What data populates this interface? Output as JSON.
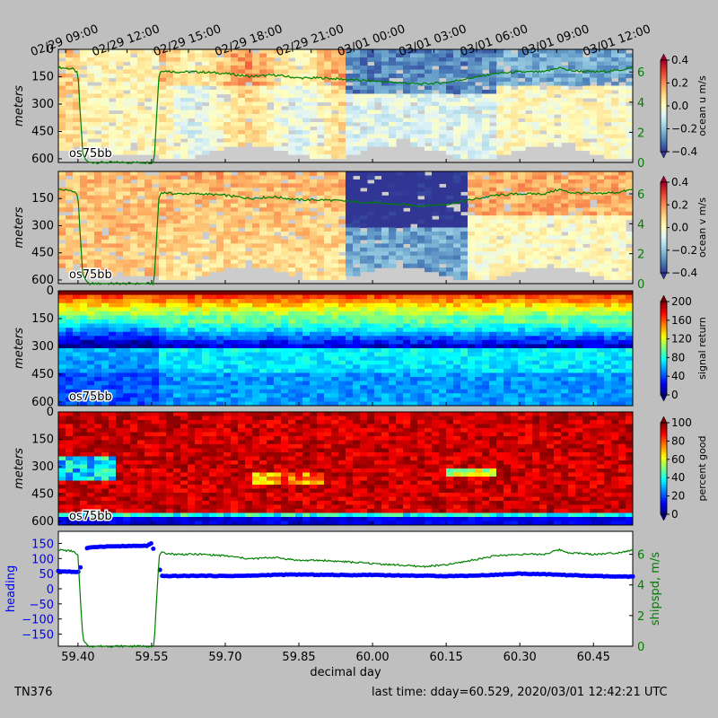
{
  "chart_data": [
    {
      "type": "heatmap",
      "panel": "ocean-u",
      "title": "",
      "ylabel": "meters",
      "ylim": [
        0,
        620
      ],
      "yticks": [
        "0",
        "150",
        "300",
        "450",
        "600"
      ],
      "label": "os75bb",
      "colorbar": {
        "label": "ocean u m/s",
        "range": [
          -0.4,
          0.4
        ],
        "ticks": [
          "0.4",
          "0.2",
          "0.0",
          "−0.2",
          "−0.4"
        ],
        "cmap": "RdYlBu_r"
      },
      "right_axis": {
        "ticks": [
          "6",
          "4",
          "2",
          "0"
        ],
        "color": "#007f00"
      },
      "top_axis_labels": [
        "02/29 09:00",
        "02/29 12:00",
        "02/29 15:00",
        "02/29 18:00",
        "02/29 21:00",
        "03/01 00:00",
        "03/01 03:00",
        "03/01 06:00",
        "03/01 09:00",
        "03/01 12:00"
      ],
      "approx_values": [
        {
          "dday": 59.4,
          "depth_150": 0.1,
          "depth_450": 0.05
        },
        {
          "dday": 59.75,
          "depth_150": 0.15,
          "depth_450": 0.0
        },
        {
          "dday": 60.15,
          "depth_150": -0.35,
          "depth_450": -0.1
        },
        {
          "dday": 60.45,
          "depth_150": -0.3,
          "depth_450": -0.05
        }
      ]
    },
    {
      "type": "heatmap",
      "panel": "ocean-v",
      "ylabel": "meters",
      "ylim": [
        0,
        620
      ],
      "yticks": [
        "150",
        "300",
        "450",
        "600"
      ],
      "label": "os75bb",
      "colorbar": {
        "label": "ocean v m/s",
        "range": [
          -0.4,
          0.4
        ],
        "ticks": [
          "0.4",
          "0.2",
          "0.0",
          "−0.2",
          "−0.4"
        ],
        "cmap": "RdYlBu_r"
      },
      "right_axis": {
        "ticks": [
          "6",
          "4",
          "2",
          "0"
        ],
        "color": "#007f00"
      },
      "approx_values": [
        {
          "dday": 59.45,
          "depth_150": 0.15,
          "depth_450": 0.1
        },
        {
          "dday": 59.8,
          "depth_150": 0.2,
          "depth_450": 0.05
        },
        {
          "dday": 60.1,
          "depth_150": -0.45,
          "depth_450": -0.3
        },
        {
          "dday": 60.4,
          "depth_150": 0.2,
          "depth_450": 0.0
        }
      ]
    },
    {
      "type": "heatmap",
      "panel": "signal-return",
      "ylabel": "meters",
      "ylim": [
        0,
        620
      ],
      "yticks": [
        "0",
        "150",
        "300",
        "450",
        "600"
      ],
      "label": "os75bb",
      "colorbar": {
        "label": "signal return",
        "range": [
          0,
          200
        ],
        "ticks": [
          "200",
          "160",
          "120",
          "80",
          "40",
          "0"
        ],
        "cmap": "jet"
      }
    },
    {
      "type": "heatmap",
      "panel": "percent-good",
      "ylabel": "meters",
      "ylim": [
        0,
        620
      ],
      "yticks": [
        "0",
        "150",
        "300",
        "450",
        "600"
      ],
      "label": "os75bb",
      "colorbar": {
        "label": "percent good",
        "range": [
          0,
          100
        ],
        "ticks": [
          "100",
          "80",
          "60",
          "40",
          "20",
          "0"
        ],
        "cmap": "jet"
      }
    },
    {
      "type": "scatter",
      "panel": "heading-shipspeed",
      "xlabel": "decimal day",
      "xlim": [
        59.36,
        60.53
      ],
      "xticks": [
        "59.40",
        "59.55",
        "59.70",
        "59.85",
        "60.00",
        "60.15",
        "60.30",
        "60.45"
      ],
      "ylabel": "heading",
      "ylim": [
        -190,
        190
      ],
      "yticks": [
        "150",
        "100",
        "50",
        "0",
        "−50",
        "−100",
        "−150"
      ],
      "y2label": "shipspd, m/s",
      "y2lim": [
        0,
        7.5
      ],
      "y2ticks": [
        "6",
        "4",
        "2",
        "0"
      ],
      "series": [
        {
          "name": "heading",
          "color": "#0000ff",
          "x": [
            59.36,
            59.38,
            59.4,
            59.405,
            59.41,
            59.43,
            59.46,
            59.5,
            59.54,
            59.55,
            59.565,
            59.57,
            59.6,
            59.65,
            59.7,
            59.75,
            59.8,
            59.85,
            59.9,
            59.95,
            60.0,
            60.05,
            60.1,
            60.15,
            60.2,
            60.25,
            60.3,
            60.35,
            60.4,
            60.45,
            60.5,
            60.53
          ],
          "y": [
            58,
            57,
            55,
            70,
            130,
            138,
            140,
            141,
            142,
            150,
            75,
            42,
            42,
            43,
            42,
            43,
            46,
            47,
            46,
            45,
            46,
            44,
            43,
            42,
            43,
            46,
            50,
            48,
            45,
            42,
            40,
            40
          ]
        },
        {
          "name": "shipspd",
          "color": "#007f00",
          "x": [
            59.36,
            59.39,
            59.4,
            59.405,
            59.41,
            59.42,
            59.5,
            59.555,
            59.56,
            59.565,
            59.57,
            59.6,
            59.65,
            59.7,
            59.75,
            59.8,
            59.85,
            59.9,
            59.95,
            60.0,
            60.05,
            60.1,
            60.15,
            60.2,
            60.25,
            60.3,
            60.35,
            60.38,
            60.4,
            60.45,
            60.5,
            60.53
          ],
          "y": [
            6.3,
            6.2,
            5.9,
            3.0,
            0.5,
            0.0,
            0.0,
            0.0,
            3.0,
            5.8,
            6.1,
            6.0,
            6.0,
            5.9,
            5.7,
            5.8,
            5.6,
            5.6,
            5.5,
            5.4,
            5.3,
            5.2,
            5.3,
            5.6,
            5.9,
            6.0,
            6.0,
            6.3,
            6.1,
            6.0,
            6.1,
            6.3
          ]
        }
      ]
    }
  ],
  "footer": {
    "cruise": "TN376",
    "last_time": "last time: dday=60.529,  2020/03/01 12:42:21 UTC"
  }
}
